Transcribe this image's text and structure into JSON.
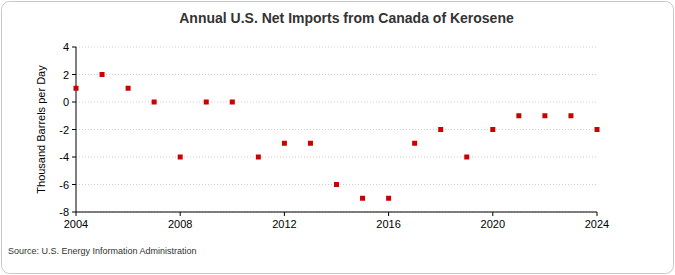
{
  "chart_data": {
    "type": "scatter",
    "title": "Annual U.S. Net Imports from Canada of Kerosene",
    "y_label": "Thousand Barrels per Day",
    "source": "Source: U.S. Energy Information Administration",
    "x": [
      2004,
      2005,
      2006,
      2007,
      2008,
      2009,
      2010,
      2011,
      2012,
      2013,
      2014,
      2015,
      2016,
      2017,
      2018,
      2019,
      2020,
      2021,
      2022,
      2023,
      2024
    ],
    "values": [
      1,
      2,
      1,
      0,
      -4,
      0,
      0,
      -4,
      -3,
      -3,
      -6,
      -7,
      -7,
      -3,
      -2,
      -4,
      -2,
      -1,
      -1,
      -1,
      -2
    ],
    "color": "#cc0000",
    "marker": "square",
    "xlim": [
      2004,
      2024
    ],
    "xticks": [
      2004,
      2008,
      2012,
      2016,
      2020,
      2024
    ],
    "ylim": [
      -8,
      4
    ],
    "yticks": [
      -8,
      -6,
      -4,
      -2,
      0,
      2,
      4
    ],
    "grid": true
  }
}
